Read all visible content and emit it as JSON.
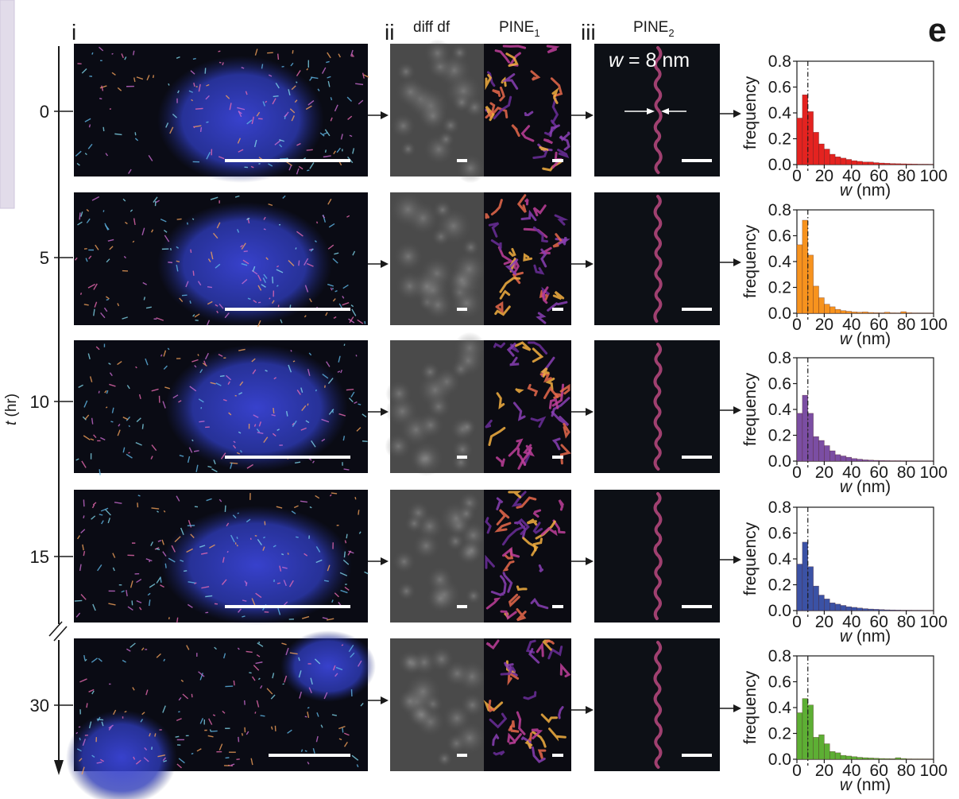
{
  "figure": {
    "panel_letter": "e",
    "section_labels": [
      "i",
      "ii",
      "iii"
    ],
    "column_headers": {
      "diff_df": "diff df",
      "pine1_main": "PINE",
      "pine1_sub": "1",
      "pine2_main": "PINE",
      "pine2_sub": "2"
    },
    "width_annotation": {
      "var": "w",
      "text": " = 8 nm"
    },
    "time_axis": {
      "label_var": "t",
      "label_unit": " (hr)",
      "ticks": [
        "0",
        "5",
        "10",
        "15",
        "30"
      ]
    }
  },
  "chart_data": [
    {
      "type": "bar",
      "time": "0",
      "color": "#e42320",
      "ylabel": "frequency",
      "xlabel_var": "w",
      "xlabel_unit": " (nm)",
      "xlim": [
        0,
        100
      ],
      "ylim": [
        0,
        0.8
      ],
      "bin_width": 4,
      "xticks": [
        "0",
        "20",
        "40",
        "60",
        "80",
        "100"
      ],
      "yticks": [
        "0.0",
        "0.2",
        "0.4",
        "0.6",
        "0.8"
      ],
      "reference_line_x": 8,
      "values": [
        0.36,
        0.54,
        0.41,
        0.25,
        0.16,
        0.12,
        0.08,
        0.06,
        0.05,
        0.04,
        0.03,
        0.025,
        0.02,
        0.02,
        0.015,
        0.012,
        0.01,
        0.008,
        0.007,
        0.006,
        0.005,
        0.004,
        0.003,
        0.003,
        0.002
      ]
    },
    {
      "type": "bar",
      "time": "5",
      "color": "#f7931e",
      "ylabel": "frequency",
      "xlabel_var": "w",
      "xlabel_unit": " (nm)",
      "xlim": [
        0,
        100
      ],
      "ylim": [
        0,
        0.8
      ],
      "bin_width": 4,
      "xticks": [
        "0",
        "20",
        "40",
        "60",
        "80",
        "100"
      ],
      "yticks": [
        "0.0",
        "0.2",
        "0.4",
        "0.6",
        "0.8"
      ],
      "reference_line_x": 8,
      "values": [
        0.53,
        0.72,
        0.45,
        0.21,
        0.12,
        0.07,
        0.05,
        0.03,
        0.02,
        0.015,
        0.01,
        0.008,
        0.01,
        0.006,
        0.004,
        0.003,
        0.008,
        0.003,
        0.002,
        0.012,
        0.004,
        0.002,
        0.001,
        0.001,
        0.001
      ]
    },
    {
      "type": "bar",
      "time": "10",
      "color": "#7b4ea3",
      "ylabel": "frequency",
      "xlabel_var": "w",
      "xlabel_unit": " (nm)",
      "xlim": [
        0,
        100
      ],
      "ylim": [
        0,
        0.8
      ],
      "bin_width": 4,
      "xticks": [
        "0",
        "20",
        "40",
        "60",
        "80",
        "100"
      ],
      "yticks": [
        "0.0",
        "0.2",
        "0.4",
        "0.6",
        "0.8"
      ],
      "reference_line_x": 8,
      "values": [
        0.37,
        0.51,
        0.37,
        0.19,
        0.16,
        0.12,
        0.08,
        0.05,
        0.04,
        0.03,
        0.02,
        0.015,
        0.01,
        0.008,
        0.006,
        0.005,
        0.004,
        0.003,
        0.003,
        0.002,
        0.002,
        0.002,
        0.001,
        0.001,
        0.001
      ]
    },
    {
      "type": "bar",
      "time": "15",
      "color": "#3b52a5",
      "ylabel": "frequency",
      "xlabel_var": "w",
      "xlabel_unit": " (nm)",
      "xlim": [
        0,
        100
      ],
      "ylim": [
        0,
        0.8
      ],
      "bin_width": 4,
      "xticks": [
        "0",
        "20",
        "40",
        "60",
        "80",
        "100"
      ],
      "yticks": [
        "0.0",
        "0.2",
        "0.4",
        "0.6",
        "0.8"
      ],
      "reference_line_x": 8,
      "values": [
        0.36,
        0.53,
        0.34,
        0.19,
        0.12,
        0.09,
        0.06,
        0.05,
        0.04,
        0.03,
        0.025,
        0.02,
        0.015,
        0.012,
        0.01,
        0.008,
        0.006,
        0.005,
        0.004,
        0.003,
        0.003,
        0.002,
        0.002,
        0.001,
        0.001
      ]
    },
    {
      "type": "bar",
      "time": "30",
      "color": "#5daf34",
      "ylabel": "frequency",
      "xlabel_var": "w",
      "xlabel_unit": " (nm)",
      "xlim": [
        0,
        100
      ],
      "ylim": [
        0,
        0.8
      ],
      "bin_width": 4,
      "xticks": [
        "0",
        "20",
        "40",
        "60",
        "80",
        "100"
      ],
      "yticks": [
        "0.0",
        "0.2",
        "0.4",
        "0.6",
        "0.8"
      ],
      "reference_line_x": 8,
      "values": [
        0.36,
        0.47,
        0.42,
        0.17,
        0.19,
        0.12,
        0.06,
        0.05,
        0.03,
        0.025,
        0.02,
        0.015,
        0.012,
        0.01,
        0.008,
        0.006,
        0.005,
        0.004,
        0.012,
        0.006,
        0.003,
        0.002,
        0.002,
        0.001,
        0.001
      ]
    }
  ]
}
